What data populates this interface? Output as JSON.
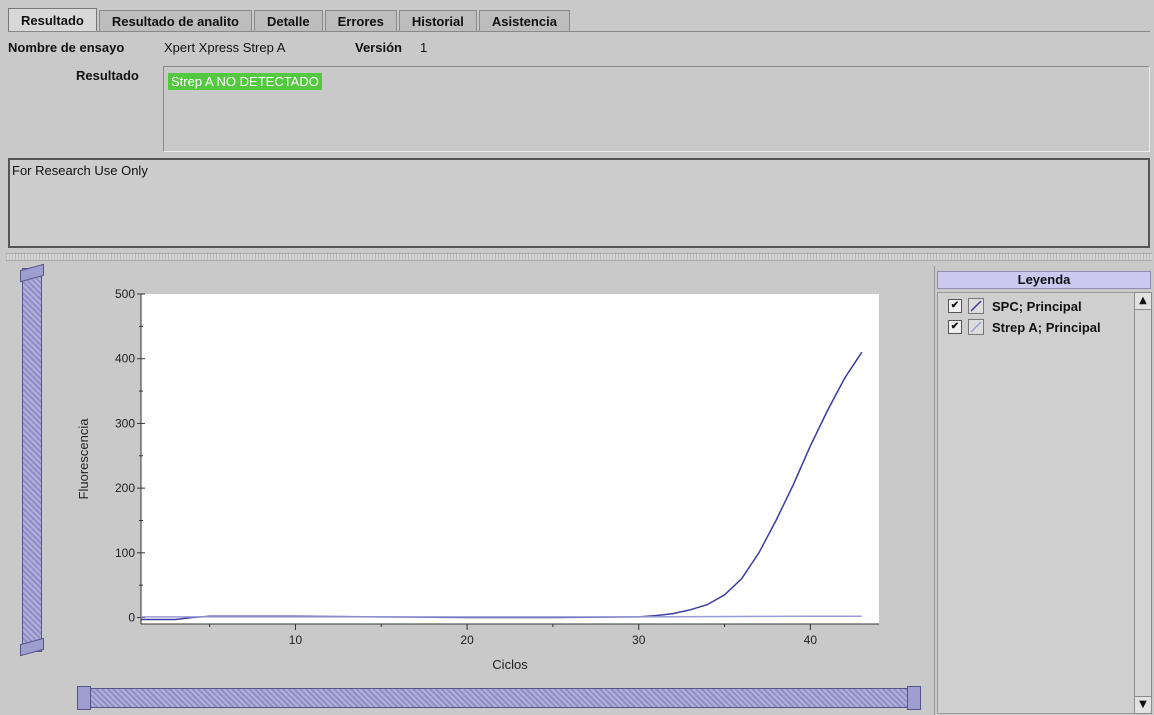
{
  "tabs": [
    {
      "label": "Resultado",
      "active": true
    },
    {
      "label": "Resultado de analito",
      "active": false
    },
    {
      "label": "Detalle",
      "active": false
    },
    {
      "label": "Errores",
      "active": false
    },
    {
      "label": "Historial",
      "active": false
    },
    {
      "label": "Asistencia",
      "active": false
    }
  ],
  "assay": {
    "name_label": "Nombre de ensayo",
    "name_value": "Xpert Xpress Strep A",
    "version_label": "Versión",
    "version_value": "1",
    "result_label": "Resultado",
    "result_value": "Strep A NO DETECTADO"
  },
  "note": "For Research Use Only",
  "legend": {
    "title": "Leyenda",
    "items": [
      {
        "label": "SPC; Principal",
        "checked": true,
        "color": "#3b3b9e"
      },
      {
        "label": "Strep A; Principal",
        "checked": true,
        "color": "#9a9ad6"
      }
    ]
  },
  "colors": {
    "result_bg": "#53c93f",
    "spc_line": "#3b3b9e",
    "strep_line": "#9a9ad6"
  },
  "chart_data": {
    "type": "line",
    "xlabel": "Ciclos",
    "ylabel": "Fluorescencia",
    "xlim": [
      1,
      44
    ],
    "ylim": [
      -10,
      500
    ],
    "xticks": [
      10,
      20,
      30,
      40
    ],
    "yticks": [
      0,
      100,
      200,
      300,
      400,
      500
    ],
    "grid": false,
    "series": [
      {
        "name": "SPC; Principal",
        "x": [
          1,
          2,
          3,
          4,
          5,
          10,
          15,
          20,
          25,
          30,
          31,
          32,
          33,
          34,
          35,
          36,
          37,
          38,
          39,
          40,
          41,
          42,
          43
        ],
        "y": [
          -3,
          -3,
          -3,
          0,
          2,
          2,
          1,
          0,
          0,
          1,
          3,
          6,
          12,
          20,
          35,
          60,
          100,
          150,
          205,
          265,
          320,
          370,
          410
        ]
      },
      {
        "name": "Strep A; Principal",
        "x": [
          1,
          5,
          10,
          20,
          30,
          40,
          43
        ],
        "y": [
          1,
          1,
          1,
          1,
          1,
          2,
          2
        ]
      }
    ]
  }
}
